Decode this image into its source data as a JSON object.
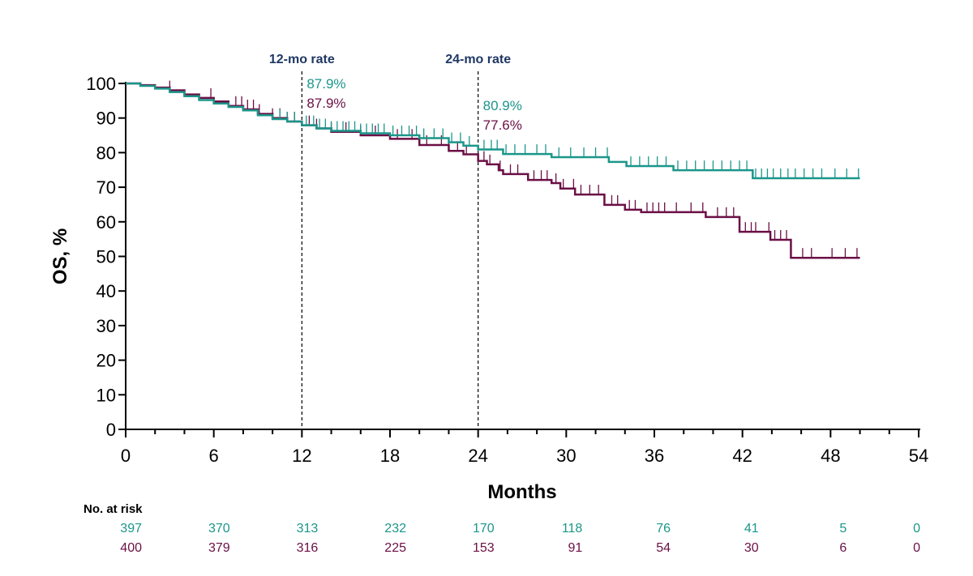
{
  "chart_data": {
    "type": "line",
    "subtype": "kaplan-meier",
    "xlabel": "Months",
    "ylabel": "OS, %",
    "xlim": [
      0,
      54
    ],
    "ylim": [
      0,
      100
    ],
    "xticks": [
      0,
      6,
      12,
      18,
      24,
      30,
      36,
      42,
      48,
      54
    ],
    "yticks": [
      0,
      10,
      20,
      30,
      40,
      50,
      60,
      70,
      80,
      90,
      100
    ],
    "reference_lines": [
      {
        "x": 12,
        "label": "12-mo rate"
      },
      {
        "x": 24,
        "label": "24-mo rate"
      }
    ],
    "annotations": [
      {
        "x": 12,
        "series": 0,
        "text": "87.9%"
      },
      {
        "x": 12,
        "series": 1,
        "text": "87.9%"
      },
      {
        "x": 24,
        "series": 0,
        "text": "80.9%"
      },
      {
        "x": 24,
        "series": 1,
        "text": "77.6%"
      }
    ],
    "series": [
      {
        "color": "#1b968a",
        "steps": [
          [
            0,
            100
          ],
          [
            1,
            99.3
          ],
          [
            2,
            98.5
          ],
          [
            3,
            97.5
          ],
          [
            4,
            96.3
          ],
          [
            5,
            95.2
          ],
          [
            6,
            94.2
          ],
          [
            7,
            93.2
          ],
          [
            8,
            92.2
          ],
          [
            9,
            90.8
          ],
          [
            10,
            89.7
          ],
          [
            11,
            89
          ],
          [
            12,
            87.9
          ],
          [
            13,
            87
          ],
          [
            14,
            86.3
          ],
          [
            16,
            85.6
          ],
          [
            18,
            85
          ],
          [
            20,
            84.2
          ],
          [
            22,
            83
          ],
          [
            23,
            82
          ],
          [
            24,
            80.9
          ],
          [
            25.7,
            79.6
          ],
          [
            29,
            78.7
          ],
          [
            32.9,
            77.3
          ],
          [
            34.1,
            76.1
          ],
          [
            37.3,
            74.9
          ],
          [
            42.7,
            72.6
          ],
          [
            50,
            72.6
          ]
        ],
        "censored": [
          10.5,
          11,
          11.5,
          12.3,
          12.8,
          13.2,
          13.6,
          14,
          14.4,
          14.8,
          15.2,
          15.6,
          16,
          16.4,
          16.8,
          17.2,
          17.6,
          18.2,
          18.8,
          19.3,
          19.8,
          20.3,
          21,
          21.6,
          22.2,
          22.8,
          23.4,
          24.4,
          24.9,
          25.3,
          25.9,
          26.5,
          27.2,
          28,
          28.6,
          29.5,
          30.3,
          31.2,
          32,
          32.8,
          34.4,
          35,
          35.6,
          36.2,
          36.8,
          37.6,
          38.2,
          38.8,
          39.4,
          40,
          40.6,
          41.2,
          41.8,
          42.3,
          42.9,
          43.3,
          43.7,
          44.1,
          44.6,
          45.1,
          45.6,
          46.2,
          46.8,
          47.4,
          48.3,
          49.1,
          49.9
        ]
      },
      {
        "color": "#6b0f45",
        "steps": [
          [
            0,
            100
          ],
          [
            1,
            99.5
          ],
          [
            2,
            98.8
          ],
          [
            3,
            98
          ],
          [
            4,
            96.8
          ],
          [
            5,
            95.8
          ],
          [
            6,
            94.8
          ],
          [
            7,
            93.5
          ],
          [
            8,
            92.5
          ],
          [
            9,
            91.2
          ],
          [
            10,
            90
          ],
          [
            11,
            89
          ],
          [
            12,
            87.9
          ],
          [
            13,
            87
          ],
          [
            14,
            86
          ],
          [
            16,
            85
          ],
          [
            18,
            84
          ],
          [
            20,
            82.2
          ],
          [
            22,
            80.5
          ],
          [
            23,
            79.5
          ],
          [
            24,
            77.6
          ],
          [
            24.6,
            76.6
          ],
          [
            25.4,
            74.9
          ],
          [
            25.7,
            73.8
          ],
          [
            27.4,
            72.1
          ],
          [
            29,
            71.2
          ],
          [
            29.6,
            69.6
          ],
          [
            30.6,
            67.9
          ],
          [
            32.6,
            64.9
          ],
          [
            34,
            63.5
          ],
          [
            35.1,
            62.8
          ],
          [
            39.5,
            61.4
          ],
          [
            41.8,
            57.1
          ],
          [
            43.9,
            54.8
          ],
          [
            45.3,
            49.6
          ],
          [
            50,
            49.6
          ]
        ],
        "censored": [
          3,
          5.8,
          7.5,
          7.9,
          8.3,
          8.7,
          9.1,
          10,
          10.5,
          11,
          11.5,
          12.5,
          13,
          14,
          15,
          16,
          17,
          18.5,
          19.5,
          20.5,
          21.5,
          22,
          22.6,
          23.2,
          24.4,
          24.8,
          25.5,
          26.2,
          26.7,
          27.8,
          28.3,
          28.7,
          29.3,
          29.8,
          30.5,
          31,
          31.6,
          32.2,
          33.1,
          33.5,
          34.3,
          34.7,
          35.5,
          35.9,
          36.3,
          36.7,
          37.5,
          38.5,
          39.3,
          40.3,
          40.9,
          41.4,
          42.2,
          42.6,
          42.9,
          43.8,
          44.2,
          44.6,
          45,
          46.1,
          46.7,
          48.1,
          49,
          49.8
        ]
      }
    ],
    "at_risk": {
      "title": "No. at risk",
      "rows": [
        {
          "color": "#1b968a",
          "values": [
            "397",
            "370",
            "313",
            "232",
            "170",
            "118",
            "76",
            "41",
            "5",
            "0"
          ]
        },
        {
          "color": "#6b0f45",
          "values": [
            "400",
            "379",
            "316",
            "225",
            "153",
            "91",
            "54",
            "30",
            "6",
            "0"
          ]
        }
      ]
    }
  }
}
